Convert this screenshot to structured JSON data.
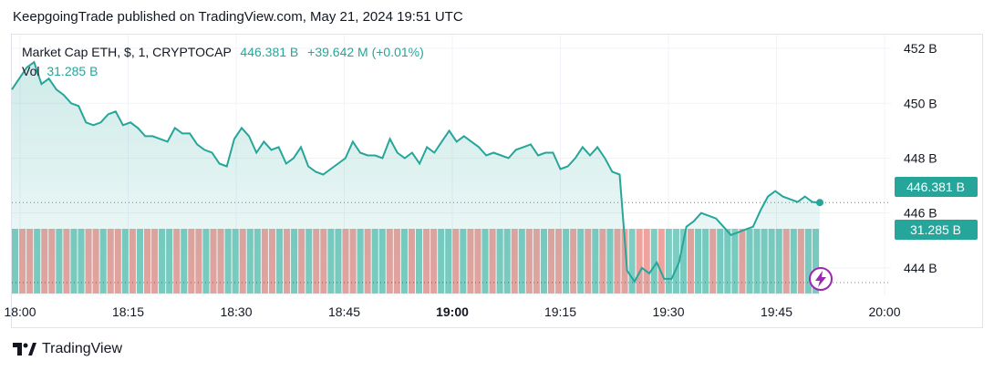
{
  "publisher_line": "KeepgoingTrade published on TradingView.com, May 21, 2024 19:51 UTC",
  "legend": {
    "symbol": "Market Cap ETH, $, 1, CRYPTOCAP",
    "last": "446.381 B",
    "change": "+39.642 M (+0.01%)",
    "vol_label": "Vol",
    "vol_value": "31.285 B"
  },
  "price_badge": "446.381 B",
  "volume_badge": "31.285 B",
  "brand": "TradingView",
  "colors": {
    "line": "#26a69a",
    "up_vol": "#7fcdc2",
    "down_vol": "#eea39f",
    "badge_price": "#26a69a",
    "badge_vol": "#26a69a"
  },
  "chart_data": {
    "type": "area",
    "x_tick_labels": [
      "18:00",
      "18:15",
      "18:30",
      "18:45",
      "19:00",
      "19:15",
      "19:30",
      "19:45",
      "20:00"
    ],
    "y_tick_labels": [
      "452 B",
      "450 B",
      "448 B",
      "446 B",
      "444 B"
    ],
    "ylim": [
      443.0,
      452.5
    ],
    "x_range_minutes": [
      0,
      120
    ],
    "series": [
      {
        "unit": "B USD",
        "values": [
          450.5,
          450.9,
          451.3,
          451.5,
          450.7,
          450.9,
          450.5,
          450.3,
          450.0,
          449.9,
          449.3,
          449.2,
          449.3,
          449.6,
          449.7,
          449.2,
          449.3,
          449.1,
          448.8,
          448.8,
          448.7,
          448.6,
          449.1,
          448.9,
          448.9,
          448.5,
          448.3,
          448.2,
          447.8,
          447.7,
          448.7,
          449.1,
          448.8,
          448.2,
          448.6,
          448.3,
          448.4,
          447.8,
          448.0,
          448.4,
          447.7,
          447.5,
          447.4,
          447.6,
          447.8,
          448.0,
          448.6,
          448.2,
          448.1,
          448.1,
          448.0,
          448.7,
          448.2,
          448.0,
          448.2,
          447.8,
          448.4,
          448.2,
          448.6,
          449.0,
          448.6,
          448.8,
          448.6,
          448.4,
          448.1,
          448.2,
          448.1,
          448.0,
          448.3,
          448.4,
          448.5,
          448.1,
          448.2,
          448.2,
          447.6,
          447.7,
          448.0,
          448.4,
          448.1,
          448.4,
          448.0,
          447.5,
          447.4,
          443.9,
          443.5,
          444.0,
          443.8,
          444.2,
          443.6,
          443.6,
          444.2,
          445.5,
          445.7,
          446.0,
          445.9,
          445.8,
          445.5,
          445.2,
          445.3,
          445.4,
          445.5,
          446.1,
          446.6,
          446.8,
          446.6,
          446.5,
          446.4,
          446.6,
          446.4,
          446.381
        ]
      }
    ],
    "volume": {
      "unit": "relative",
      "last_value": "31.285 B",
      "direction": [
        1,
        0,
        0,
        1,
        0,
        0,
        1,
        0,
        1,
        1,
        0,
        0,
        1,
        0,
        0,
        1,
        0,
        1,
        0,
        0,
        1,
        1,
        0,
        1,
        0,
        0,
        1,
        0,
        0,
        1,
        1,
        0,
        1,
        1,
        0,
        0,
        1,
        0,
        1,
        0,
        1,
        0,
        0,
        1,
        1,
        0,
        0,
        1,
        0,
        1,
        1,
        0,
        0,
        1,
        0,
        1,
        0,
        0,
        1,
        1,
        0,
        1,
        0,
        0,
        1,
        0,
        1,
        1,
        0,
        1,
        0,
        0,
        1,
        0,
        0,
        1,
        0,
        1,
        0,
        1,
        0,
        1,
        0,
        0,
        1,
        0,
        0,
        1,
        0,
        1,
        1,
        1,
        0,
        1,
        1,
        0,
        1,
        1,
        1,
        0,
        1,
        1,
        1,
        1,
        1,
        0,
        1,
        0,
        1,
        1
      ]
    },
    "grid": true,
    "legend_position": "top-left"
  }
}
